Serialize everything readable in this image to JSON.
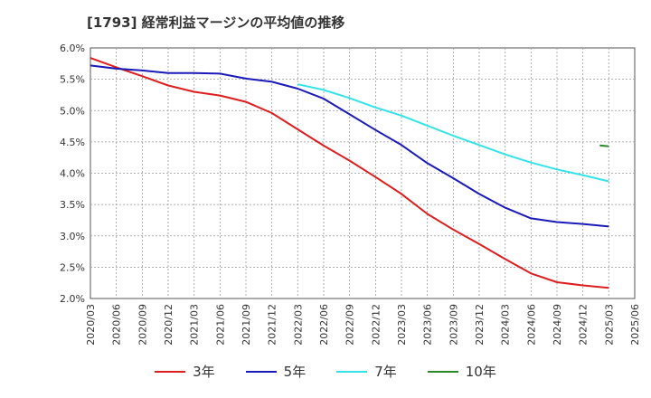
{
  "chart_data": {
    "type": "line",
    "title": "[1793]  経常利益マージンの平均値の推移",
    "xlabel": "",
    "ylabel": "",
    "ylim": [
      2.0,
      6.0
    ],
    "yticks": [
      "6.0%",
      "5.5%",
      "5.0%",
      "4.5%",
      "4.0%",
      "3.5%",
      "3.0%",
      "2.5%",
      "2.0%"
    ],
    "categories": [
      "2020/03",
      "2020/06",
      "2020/09",
      "2020/12",
      "2021/03",
      "2021/06",
      "2021/09",
      "2021/12",
      "2022/03",
      "2022/06",
      "2022/09",
      "2022/12",
      "2023/03",
      "2023/06",
      "2023/09",
      "2023/12",
      "2024/03",
      "2024/06",
      "2024/09",
      "2024/12",
      "2025/03",
      "2025/06"
    ],
    "grid": true,
    "legend_position": "bottom",
    "series": [
      {
        "name": "3年",
        "color": "#dd1e1e",
        "values": [
          5.84,
          5.69,
          5.55,
          5.4,
          5.3,
          5.24,
          5.14,
          4.96,
          4.7,
          4.44,
          4.2,
          3.94,
          3.67,
          3.35,
          3.1,
          2.87,
          2.63,
          2.4,
          2.26,
          2.21,
          2.17,
          null
        ]
      },
      {
        "name": "5年",
        "color": "#1a1ab8",
        "values": [
          5.72,
          5.67,
          5.64,
          5.6,
          5.6,
          5.59,
          5.51,
          5.46,
          5.35,
          5.19,
          4.94,
          4.69,
          4.45,
          4.16,
          3.92,
          3.67,
          3.45,
          3.28,
          3.22,
          3.19,
          3.15,
          null
        ]
      },
      {
        "name": "7年",
        "color": "#33e3e8",
        "values": [
          null,
          null,
          null,
          null,
          null,
          null,
          null,
          null,
          5.42,
          5.33,
          5.2,
          5.05,
          4.92,
          4.76,
          4.6,
          4.45,
          4.3,
          4.17,
          4.06,
          3.97,
          3.87,
          null
        ]
      },
      {
        "name": "10年",
        "color": "#2a8a2a",
        "values": [
          null,
          null,
          null,
          null,
          null,
          null,
          null,
          null,
          null,
          null,
          null,
          null,
          null,
          null,
          null,
          null,
          null,
          null,
          null,
          null,
          4.43,
          null
        ]
      }
    ]
  }
}
